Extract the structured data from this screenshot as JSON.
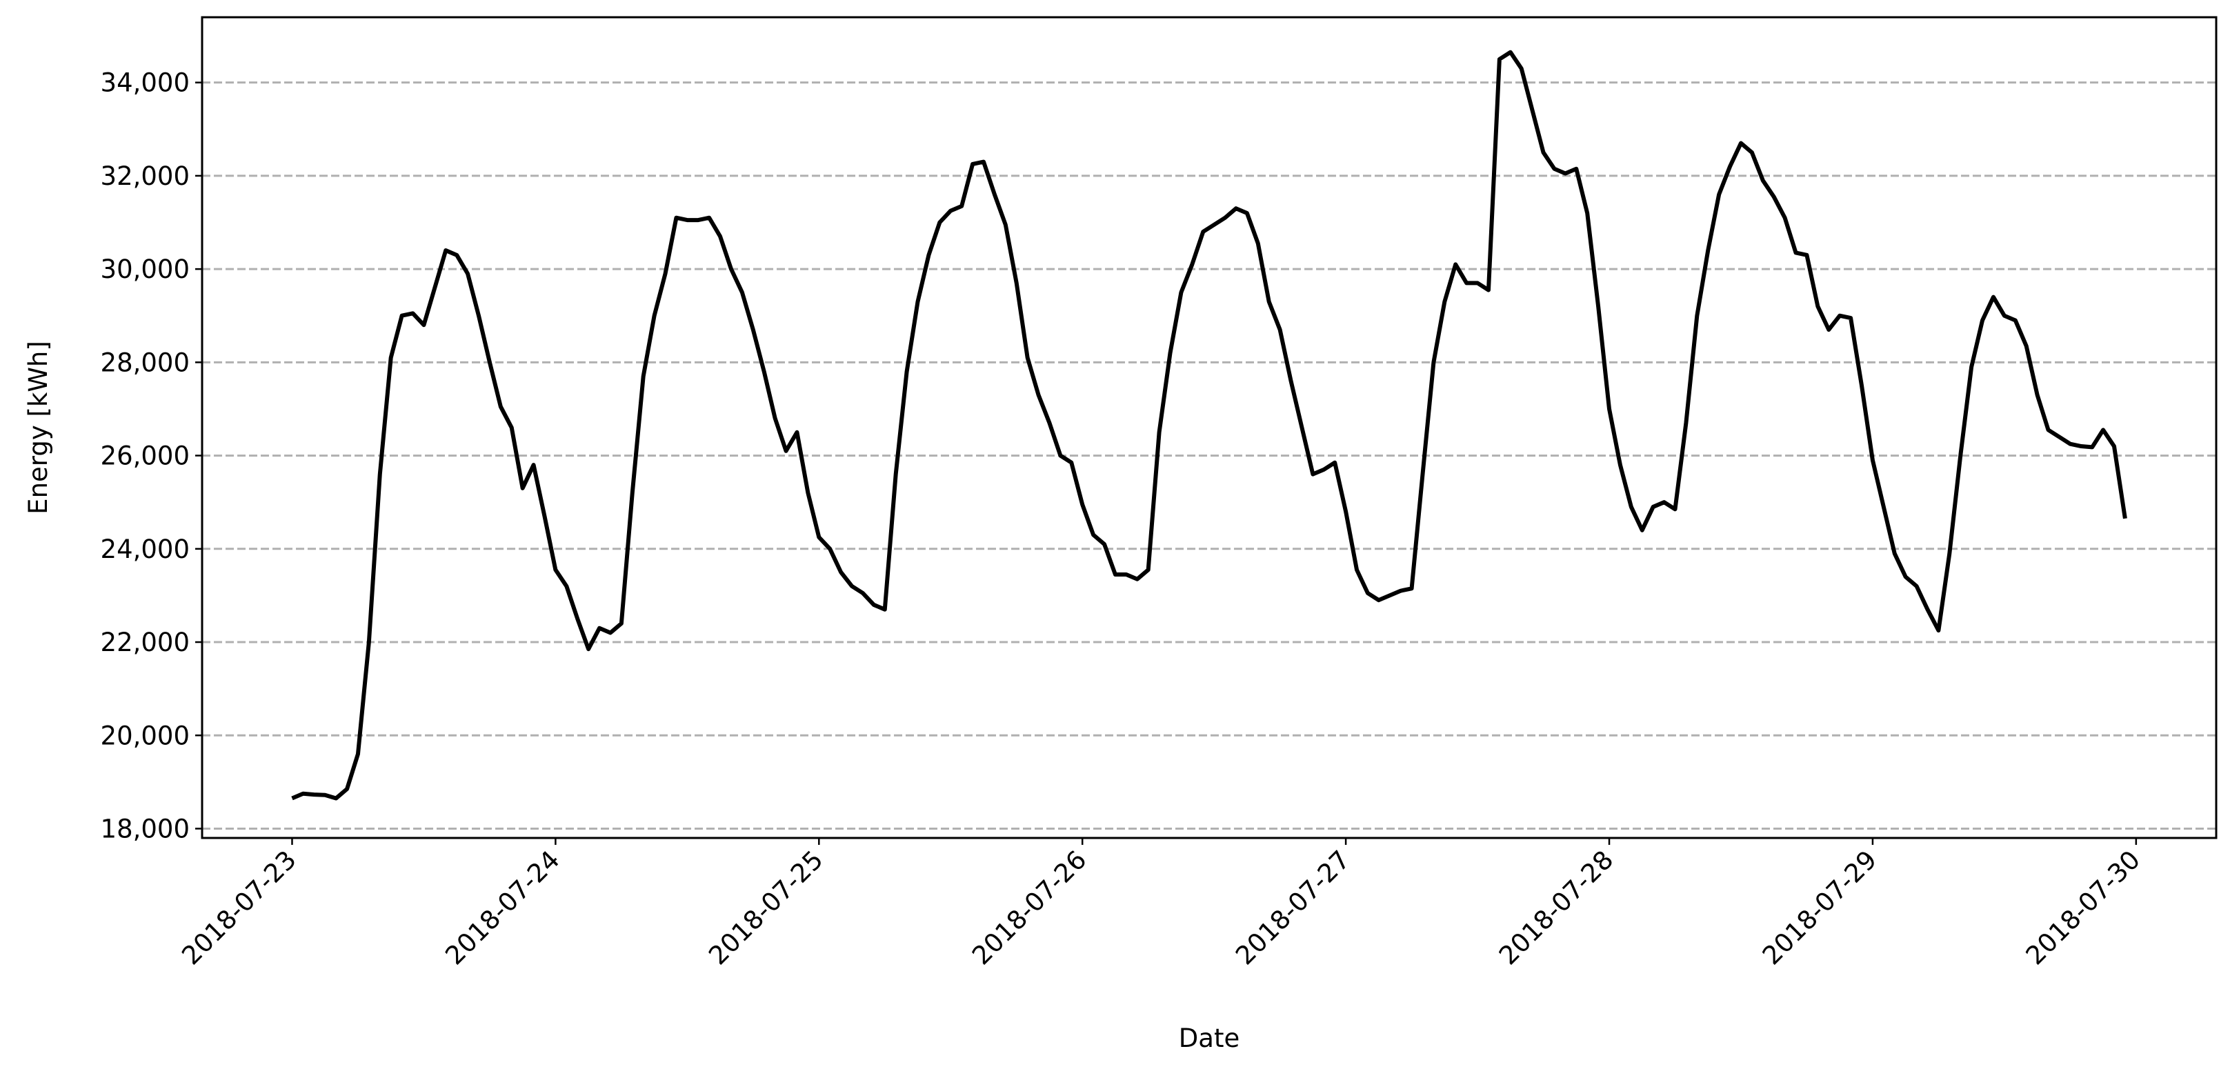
{
  "chart_data": {
    "type": "line",
    "xlabel": "Date",
    "ylabel": "Energy [kWh]",
    "color": "#000000",
    "grid": true,
    "xlim": [
      -8.2,
      175.3
    ],
    "xticks": [
      {
        "value": 0,
        "label": "2018-07-23"
      },
      {
        "value": 24,
        "label": "2018-07-24"
      },
      {
        "value": 48,
        "label": "2018-07-25"
      },
      {
        "value": 72,
        "label": "2018-07-26"
      },
      {
        "value": 96,
        "label": "2018-07-27"
      },
      {
        "value": 120,
        "label": "2018-07-28"
      },
      {
        "value": 144,
        "label": "2018-07-29"
      },
      {
        "value": 168,
        "label": "2018-07-30"
      }
    ],
    "ylim": [
      17800,
      35400
    ],
    "yticks": [
      {
        "value": 18000,
        "label": "18,000"
      },
      {
        "value": 20000,
        "label": "20,000"
      },
      {
        "value": 22000,
        "label": "22,000"
      },
      {
        "value": 24000,
        "label": "24,000"
      },
      {
        "value": 26000,
        "label": "26,000"
      },
      {
        "value": 28000,
        "label": "28,000"
      },
      {
        "value": 30000,
        "label": "30,000"
      },
      {
        "value": 32000,
        "label": "32,000"
      },
      {
        "value": 34000,
        "label": "34,000"
      }
    ],
    "x": [
      0,
      1,
      2,
      3,
      4,
      5,
      6,
      7,
      8,
      9,
      10,
      11,
      12,
      13,
      14,
      15,
      16,
      17,
      18,
      19,
      20,
      21,
      22,
      23,
      24,
      25,
      26,
      27,
      28,
      29,
      30,
      31,
      32,
      33,
      34,
      35,
      36,
      37,
      38,
      39,
      40,
      41,
      42,
      43,
      44,
      45,
      46,
      47,
      48,
      49,
      50,
      51,
      52,
      53,
      54,
      55,
      56,
      57,
      58,
      59,
      60,
      61,
      62,
      63,
      64,
      65,
      66,
      67,
      68,
      69,
      70,
      71,
      72,
      73,
      74,
      75,
      76,
      77,
      78,
      79,
      80,
      81,
      82,
      83,
      84,
      85,
      86,
      87,
      88,
      89,
      90,
      91,
      92,
      93,
      94,
      95,
      96,
      97,
      98,
      99,
      100,
      101,
      102,
      103,
      104,
      105,
      106,
      107,
      108,
      109,
      110,
      111,
      112,
      113,
      114,
      115,
      116,
      117,
      118,
      119,
      120,
      121,
      122,
      123,
      124,
      125,
      126,
      127,
      128,
      129,
      130,
      131,
      132,
      133,
      134,
      135,
      136,
      137,
      138,
      139,
      140,
      141,
      142,
      143,
      144,
      145,
      146,
      147,
      148,
      149,
      150,
      151,
      152,
      153,
      154,
      155,
      156,
      157,
      158,
      159,
      160,
      161,
      162,
      163,
      164,
      165,
      166,
      167
    ],
    "values": [
      18650,
      18750,
      18730,
      18720,
      18650,
      18850,
      19600,
      22000,
      25600,
      28100,
      29000,
      29050,
      28800,
      29600,
      30400,
      30300,
      29900,
      29000,
      28000,
      27050,
      26600,
      25300,
      25800,
      24700,
      23550,
      23200,
      22500,
      21850,
      22300,
      22200,
      22400,
      25200,
      27700,
      29000,
      29900,
      31100,
      31050,
      31050,
      31100,
      30700,
      30000,
      29500,
      28700,
      27800,
      26800,
      26100,
      26500,
      25200,
      24250,
      24000,
      23500,
      23200,
      23050,
      22800,
      22700,
      25600,
      27800,
      29300,
      30300,
      31000,
      31250,
      31350,
      32250,
      32300,
      31600,
      30950,
      29700,
      28100,
      27300,
      26700,
      26000,
      25850,
      24950,
      24300,
      24100,
      23450,
      23450,
      23350,
      23550,
      26500,
      28200,
      29500,
      30100,
      30800,
      30950,
      31100,
      31300,
      31200,
      30550,
      29300,
      28700,
      27600,
      26600,
      25600,
      25700,
      25850,
      24800,
      23550,
      23050,
      22900,
      23000,
      23100,
      23150,
      25600,
      28000,
      29300,
      30100,
      29700,
      29700,
      29550,
      34500,
      34650,
      34300,
      33400,
      32500,
      32150,
      32050,
      32150,
      31200,
      29200,
      27000,
      25800,
      24900,
      24400,
      24900,
      25000,
      24850,
      26700,
      29000,
      30400,
      31600,
      32200,
      32700,
      32500,
      31900,
      31550,
      31100,
      30350,
      30300,
      29200,
      28700,
      29000,
      28950,
      27500,
      25900,
      24900,
      23900,
      23400,
      23200,
      22700,
      22250,
      23900,
      26000,
      27900,
      28900,
      29400,
      29000,
      28900,
      28350,
      27300,
      26550,
      26400,
      26250,
      26200,
      26180,
      26550,
      26200,
      24650
    ]
  }
}
